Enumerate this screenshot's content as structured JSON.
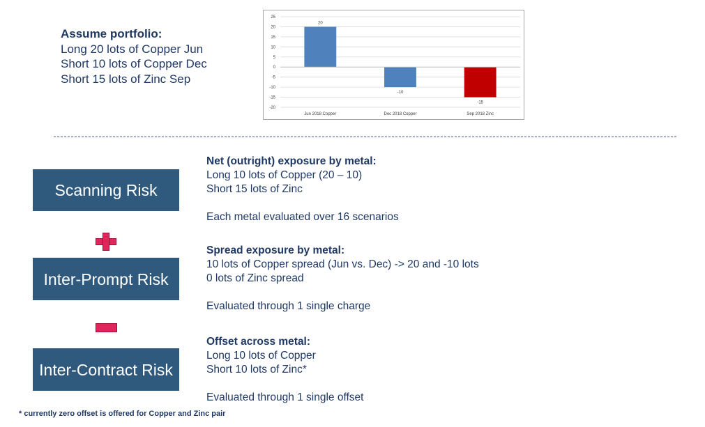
{
  "portfolio": {
    "title": "Assume portfolio:",
    "lines": [
      "Long 20 lots of Copper Jun",
      "Short 10 lots of Copper Dec",
      "Short 15 lots of Zinc Sep"
    ]
  },
  "chart_data": {
    "type": "bar",
    "categories": [
      "Jun 2018 Copper",
      "Dec 2018 Copper",
      "Sep 2018 Zinc"
    ],
    "values": [
      20,
      -10,
      -15
    ],
    "data_labels": [
      "20",
      "-10",
      "-15"
    ],
    "ylim": [
      -20,
      25
    ],
    "yticks": [
      25,
      20,
      15,
      10,
      5,
      0,
      -5,
      -10,
      -15,
      -20
    ],
    "title": "",
    "xlabel": "",
    "ylabel": "",
    "grid": true,
    "colors": [
      "#4f81bd",
      "#4f81bd",
      "#c00000"
    ]
  },
  "boxes": {
    "scanning": "Scanning Risk",
    "interprompt": "Inter-Prompt Risk",
    "intercontract": "Inter-Contract Risk"
  },
  "operators": {
    "plus": "plus-icon",
    "minus": "minus-icon"
  },
  "net": {
    "head": "Net (outright) exposure by metal:",
    "line1": "Long 10 lots of Copper (20 – 10)",
    "line2": "Short 15 lots of Zinc",
    "line3": "Each metal evaluated over 16 scenarios"
  },
  "spread": {
    "head": "Spread exposure by metal:",
    "line1": "10 lots of Copper spread (Jun vs. Dec) -> 20 and -10 lots",
    "line2": "0 lots of Zinc spread",
    "line3": "Evaluated through 1 single charge"
  },
  "offset": {
    "head": "Offset across metal:",
    "line1": "Long 10 lots of Copper",
    "line2": "Short 10 lots of Zinc*",
    "line3": "Evaluated through 1 single offset"
  },
  "footnote": "* currently zero offset is offered for Copper and Zinc pair"
}
